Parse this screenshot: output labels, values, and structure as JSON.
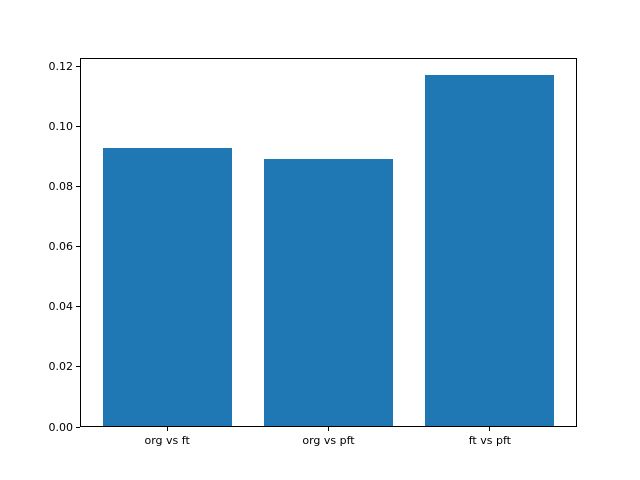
{
  "chart_data": {
    "type": "bar",
    "title": "",
    "xlabel": "",
    "ylabel": "",
    "categories": [
      "org vs ft",
      "org vs pft",
      "ft vs pft"
    ],
    "values": [
      0.0924,
      0.0888,
      0.1168
    ],
    "yticks": [
      0,
      0.02,
      0.04,
      0.06,
      0.08,
      0.1,
      0.12
    ],
    "ytick_labels": [
      "0.00",
      "0.02",
      "0.04",
      "0.06",
      "0.08",
      "0.10",
      "0.12"
    ],
    "ylim": [
      0,
      0.1228
    ],
    "xlim": [
      -0.54,
      2.54
    ],
    "bar_width": 0.8,
    "bar_color": "#1f77b4",
    "background_color": "#ffffff",
    "spine_color": "#000000",
    "grid": false,
    "legend": false
  }
}
